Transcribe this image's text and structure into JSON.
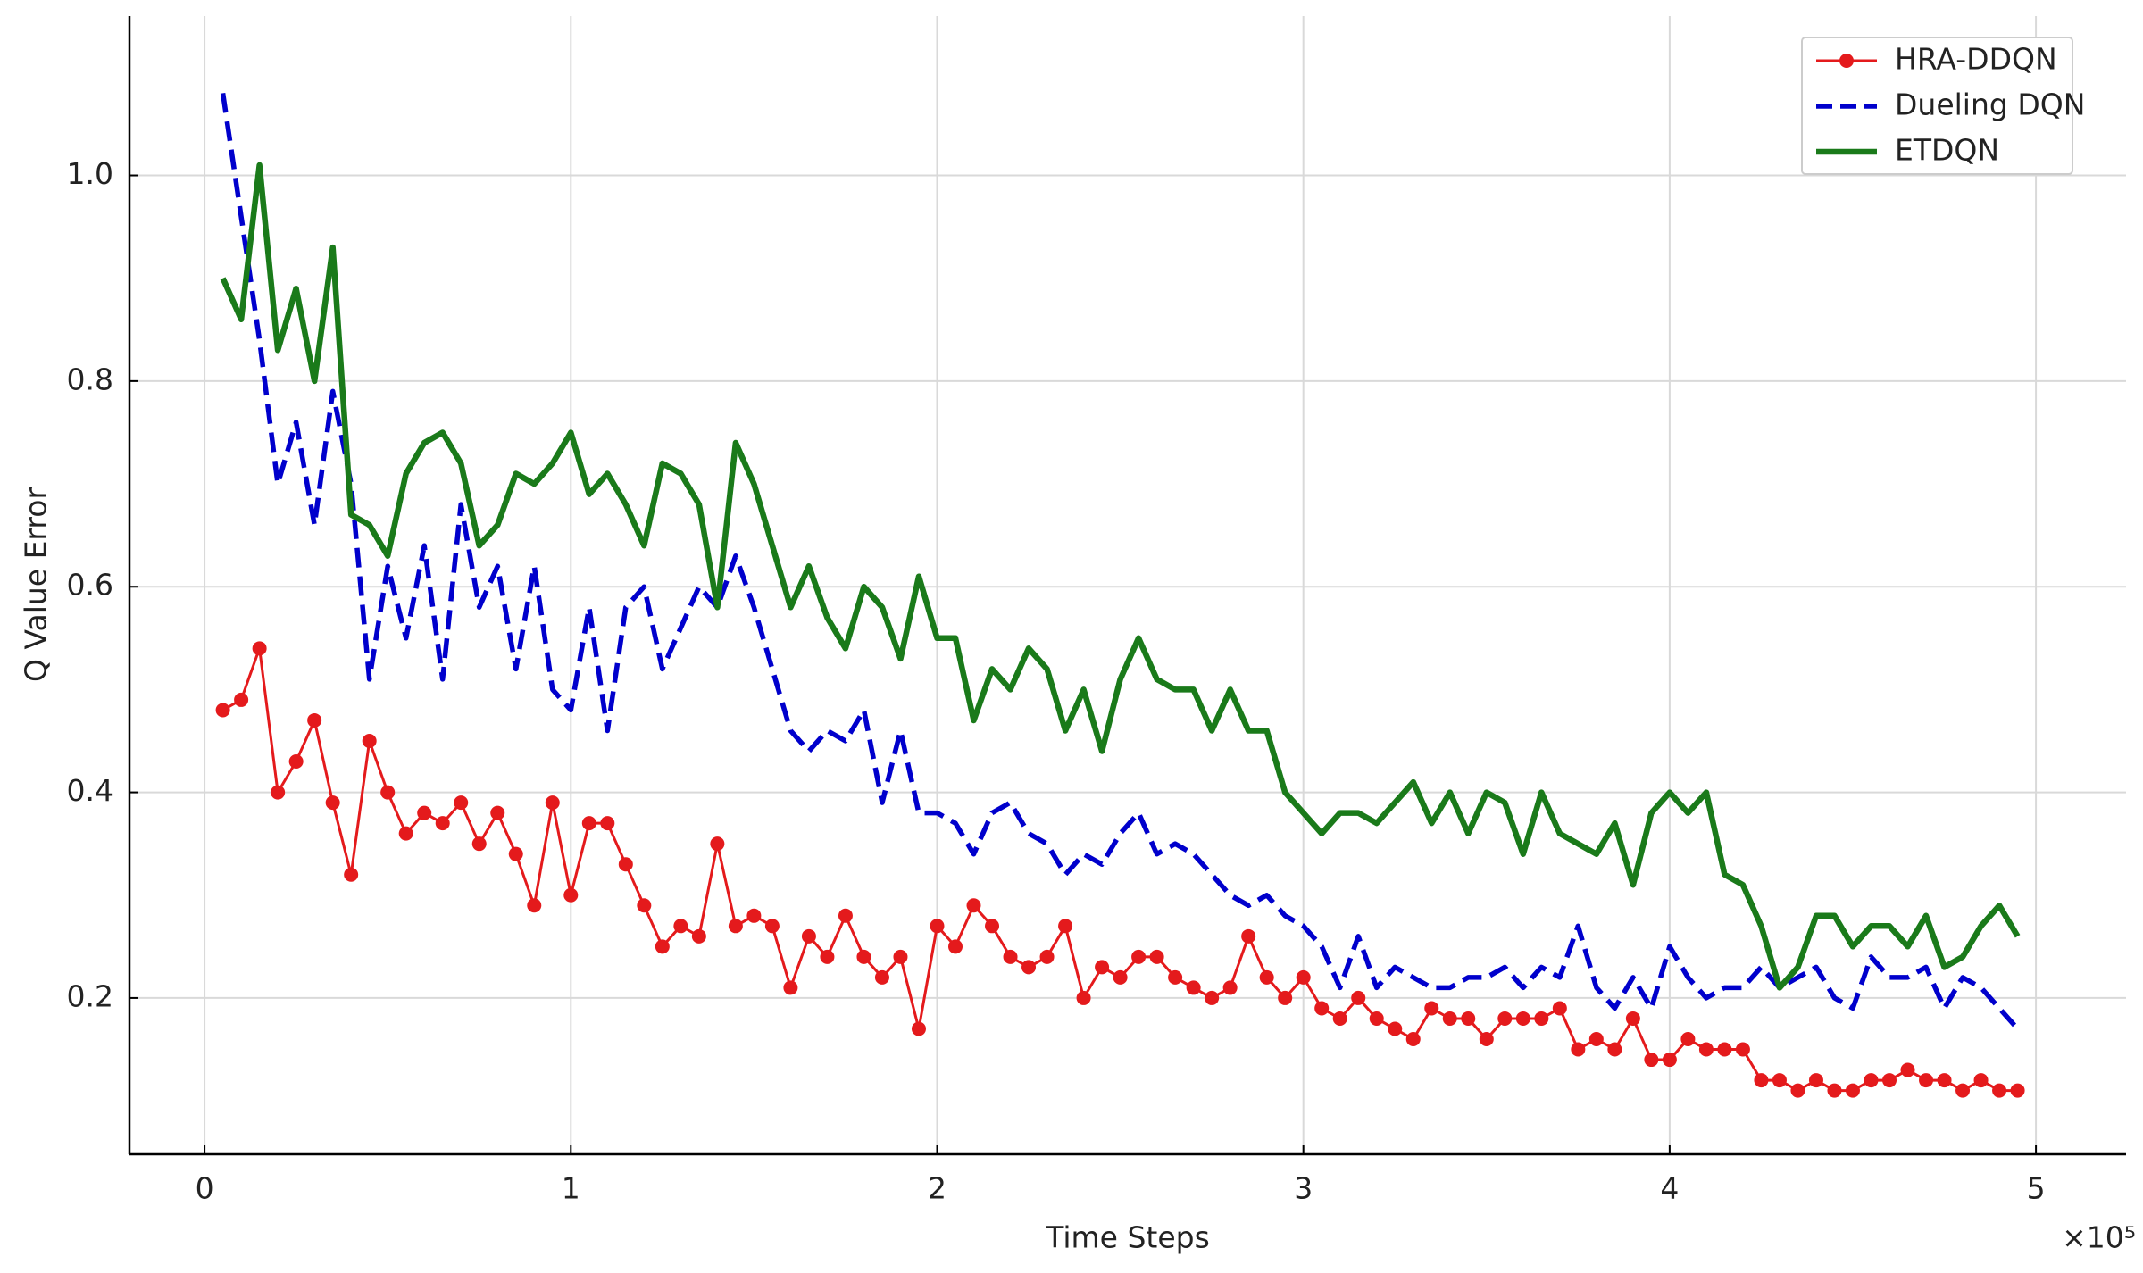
{
  "chart_data": {
    "type": "line",
    "x_label": "Time Steps",
    "y_label": "Q Value Error",
    "x_offset_label": "×10⁵",
    "xlim": [
      -20500,
      524600
    ],
    "ylim": [
      0.048,
      1.155
    ],
    "xticks": [
      0,
      {
        "value": 100000,
        "label": "1"
      },
      {
        "value": 200000,
        "label": "2"
      },
      {
        "value": 300000,
        "label": "3"
      },
      {
        "value": 400000,
        "label": "4"
      },
      {
        "value": 500000,
        "label": "5"
      }
    ],
    "yticks": [
      0.2,
      0.4,
      0.6,
      0.8,
      {
        "value": 1,
        "label": "1.0"
      }
    ],
    "grid": true,
    "legend": "upper right",
    "x": [
      5000,
      10000,
      15000,
      20000,
      25000,
      30000,
      35000,
      40000,
      45000,
      50000,
      55000,
      60000,
      65000,
      70000,
      75000,
      80000,
      85000,
      90000,
      95000,
      100000,
      105000,
      110000,
      115000,
      120000,
      125000,
      130000,
      135000,
      140000,
      145000,
      150000,
      155000,
      160000,
      165000,
      170000,
      175000,
      180000,
      185000,
      190000,
      195000,
      200000,
      205000,
      210000,
      215000,
      220000,
      225000,
      230000,
      235000,
      240000,
      245000,
      250000,
      255000,
      260000,
      265000,
      270000,
      275000,
      280000,
      285000,
      290000,
      295000,
      300000,
      305000,
      310000,
      315000,
      320000,
      325000,
      330000,
      335000,
      340000,
      345000,
      350000,
      355000,
      360000,
      365000,
      370000,
      375000,
      380000,
      385000,
      390000,
      395000,
      400000,
      405000,
      410000,
      415000,
      420000,
      425000,
      430000,
      435000,
      440000,
      445000,
      450000,
      455000,
      460000,
      465000,
      470000,
      475000,
      480000,
      485000,
      490000,
      495000
    ],
    "series": [
      {
        "name": "HRA-DDQN",
        "color": "#e41a1c",
        "linestyle": "solid",
        "marker": "o",
        "values": [
          0.48,
          0.49,
          0.54,
          0.4,
          0.43,
          0.47,
          0.39,
          0.32,
          0.45,
          0.4,
          0.36,
          0.38,
          0.37,
          0.39,
          0.35,
          0.38,
          0.34,
          0.29,
          0.39,
          0.3,
          0.37,
          0.37,
          0.33,
          0.29,
          0.25,
          0.27,
          0.26,
          0.35,
          0.27,
          0.28,
          0.27,
          0.21,
          0.26,
          0.24,
          0.28,
          0.24,
          0.22,
          0.24,
          0.17,
          0.27,
          0.25,
          0.29,
          0.27,
          0.24,
          0.23,
          0.24,
          0.27,
          0.2,
          0.23,
          0.22,
          0.24,
          0.24,
          0.22,
          0.21,
          0.2,
          0.21,
          0.26,
          0.22,
          0.2,
          0.22,
          0.19,
          0.18,
          0.2,
          0.18,
          0.17,
          0.16,
          0.19,
          0.18,
          0.18,
          0.16,
          0.18,
          0.18,
          0.18,
          0.19,
          0.15,
          0.16,
          0.15,
          0.18,
          0.14,
          0.14,
          0.16,
          0.15,
          0.15,
          0.15,
          0.12,
          0.12,
          0.11,
          0.12,
          0.11,
          0.11,
          0.12,
          0.12,
          0.13,
          0.12,
          0.12,
          0.11,
          0.12,
          0.11,
          0.11
        ]
      },
      {
        "name": "Dueling DQN",
        "color": "#0000cc",
        "linestyle": "dashed",
        "values": [
          1.08,
          0.96,
          0.84,
          0.7,
          0.76,
          0.66,
          0.79,
          0.7,
          0.51,
          0.62,
          0.55,
          0.64,
          0.51,
          0.68,
          0.58,
          0.62,
          0.52,
          0.62,
          0.5,
          0.48,
          0.58,
          0.46,
          0.58,
          0.6,
          0.52,
          0.56,
          0.6,
          0.58,
          0.63,
          0.58,
          0.52,
          0.46,
          0.44,
          0.46,
          0.45,
          0.48,
          0.39,
          0.46,
          0.38,
          0.38,
          0.37,
          0.34,
          0.38,
          0.39,
          0.36,
          0.35,
          0.32,
          0.34,
          0.33,
          0.36,
          0.38,
          0.34,
          0.35,
          0.34,
          0.32,
          0.3,
          0.29,
          0.3,
          0.28,
          0.27,
          0.25,
          0.21,
          0.26,
          0.21,
          0.23,
          0.22,
          0.21,
          0.21,
          0.22,
          0.22,
          0.23,
          0.21,
          0.23,
          0.22,
          0.27,
          0.21,
          0.19,
          0.22,
          0.19,
          0.25,
          0.22,
          0.2,
          0.21,
          0.21,
          0.23,
          0.21,
          0.22,
          0.23,
          0.2,
          0.19,
          0.24,
          0.22,
          0.22,
          0.23,
          0.19,
          0.22,
          0.21,
          0.19,
          0.17
        ]
      },
      {
        "name": "ETDQN",
        "color": "#1a7a1a",
        "linestyle": "solid",
        "values": [
          0.9,
          0.86,
          1.01,
          0.83,
          0.89,
          0.8,
          0.93,
          0.67,
          0.66,
          0.63,
          0.71,
          0.74,
          0.75,
          0.72,
          0.64,
          0.66,
          0.71,
          0.7,
          0.72,
          0.75,
          0.69,
          0.71,
          0.68,
          0.64,
          0.72,
          0.71,
          0.68,
          0.58,
          0.74,
          0.7,
          0.64,
          0.58,
          0.62,
          0.57,
          0.54,
          0.6,
          0.58,
          0.53,
          0.61,
          0.55,
          0.55,
          0.47,
          0.52,
          0.5,
          0.54,
          0.52,
          0.46,
          0.5,
          0.44,
          0.51,
          0.55,
          0.51,
          0.5,
          0.5,
          0.46,
          0.5,
          0.46,
          0.46,
          0.4,
          0.38,
          0.36,
          0.38,
          0.38,
          0.37,
          0.39,
          0.41,
          0.37,
          0.4,
          0.36,
          0.4,
          0.39,
          0.34,
          0.4,
          0.36,
          0.35,
          0.34,
          0.37,
          0.31,
          0.38,
          0.4,
          0.38,
          0.4,
          0.32,
          0.31,
          0.27,
          0.21,
          0.23,
          0.28,
          0.28,
          0.25,
          0.27,
          0.27,
          0.25,
          0.28,
          0.23,
          0.24,
          0.27,
          0.29,
          0.26
        ]
      }
    ]
  }
}
